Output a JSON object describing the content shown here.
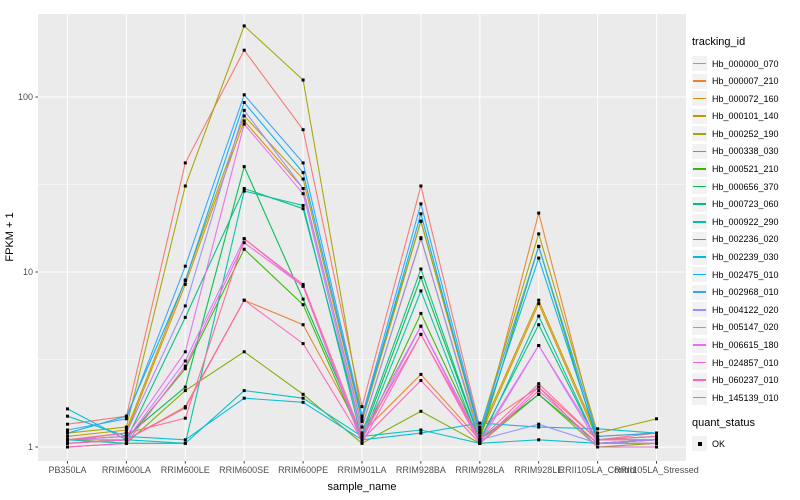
{
  "figure": {
    "background": "#FFFFFF",
    "panel_background": "#EBEBEB",
    "grid_color": "#FFFFFF",
    "axis_text_color": "#4D4D4D",
    "tick_color": "#333333"
  },
  "chart_data": {
    "type": "line",
    "title": "",
    "xlabel": "sample_name",
    "ylabel": "FPKM + 1",
    "y_scale": "log10",
    "y_ticks": [
      1,
      10,
      100
    ],
    "ylim": [
      1,
      300
    ],
    "grid": true,
    "legend_position": "right",
    "legend_title": "tracking_id",
    "point_shape": "square",
    "point_color": "#000000",
    "quant_legend": {
      "title": "quant_status",
      "items": [
        {
          "label": "OK",
          "marker": "black-square"
        }
      ]
    },
    "categories": [
      "PB350LA",
      "RRIM600LA",
      "RRIM600LE",
      "RRIM600SE",
      "RRIM600PE",
      "RRIM901LA",
      "RRIM928BA",
      "RRIM928LA",
      "RRIM928LE",
      "RRII105LA_Control",
      "RRII105LA_Stressed"
    ],
    "series": [
      {
        "name": "Hb_000000_070",
        "color": "#F8766D",
        "values": [
          1.35,
          1.5,
          42,
          185,
          65,
          1.7,
          31,
          1.3,
          2.2,
          1.1,
          1.2
        ]
      },
      {
        "name": "Hb_000007_210",
        "color": "#EA8331",
        "values": [
          1.1,
          1.1,
          1.7,
          6.9,
          5.0,
          1.2,
          2.6,
          1.1,
          21.7,
          1.1,
          1.1
        ]
      },
      {
        "name": "Hb_000072_160",
        "color": "#D89000",
        "values": [
          1.1,
          1.2,
          8.5,
          73,
          30,
          1.3,
          15.5,
          1.15,
          6.6,
          1.1,
          1.1
        ]
      },
      {
        "name": "Hb_000101_140",
        "color": "#C09B00",
        "values": [
          1.15,
          1.25,
          9.0,
          78,
          34,
          1.4,
          19.5,
          1.2,
          6.9,
          1.15,
          1.2
        ]
      },
      {
        "name": "Hb_000252_190",
        "color": "#A3A500",
        "values": [
          1.2,
          1.3,
          31,
          255,
          125,
          1.5,
          19.5,
          1.25,
          16.5,
          1.2,
          1.45
        ]
      },
      {
        "name": "Hb_000338_030",
        "color": "#7CAE00",
        "values": [
          1.0,
          1.05,
          2.1,
          3.5,
          2.0,
          1.05,
          1.6,
          1.05,
          2.0,
          1.0,
          1.05
        ]
      },
      {
        "name": "Hb_000521_210",
        "color": "#39B600",
        "values": [
          1.05,
          1.1,
          2.8,
          13.5,
          6.5,
          1.1,
          5.8,
          1.1,
          14.0,
          1.05,
          1.1
        ]
      },
      {
        "name": "Hb_000656_370",
        "color": "#00BB4E",
        "values": [
          1.1,
          1.15,
          2.2,
          40,
          7.0,
          1.15,
          9.3,
          1.1,
          2.0,
          1.05,
          1.1
        ]
      },
      {
        "name": "Hb_000723_060",
        "color": "#00BF7D",
        "values": [
          1.05,
          1.1,
          5.5,
          30,
          23,
          1.2,
          10.4,
          1.1,
          5.0,
          1.05,
          1.1
        ]
      },
      {
        "name": "Hb_000922_290",
        "color": "#00C1A3",
        "values": [
          1.1,
          1.05,
          1.05,
          29,
          24,
          1.1,
          7.8,
          1.05,
          5.6,
          1.05,
          1.05
        ]
      },
      {
        "name": "Hb_002236_020",
        "color": "#00BFC4",
        "values": [
          1.65,
          1.1,
          1.05,
          2.1,
          1.9,
          1.15,
          1.25,
          1.05,
          1.1,
          1.05,
          1.1
        ]
      },
      {
        "name": "Hb_002239_030",
        "color": "#00BBDA",
        "values": [
          1.5,
          1.15,
          1.1,
          1.9,
          1.8,
          1.1,
          1.2,
          1.37,
          1.3,
          1.27,
          1.2
        ]
      },
      {
        "name": "Hb_002475_010",
        "color": "#00B0F6",
        "values": [
          1.2,
          1.5,
          8.9,
          93,
          37,
          1.45,
          21.5,
          1.2,
          12,
          1.1,
          1.15
        ]
      },
      {
        "name": "Hb_002968_010",
        "color": "#35A2FF",
        "values": [
          1.25,
          1.45,
          10.8,
          103,
          42,
          1.5,
          24.5,
          1.25,
          14,
          1.15,
          1.2
        ]
      },
      {
        "name": "Hb_004122_020",
        "color": "#9590FF",
        "values": [
          1.1,
          1.2,
          6.4,
          84,
          30,
          1.3,
          15.7,
          1.1,
          1.35,
          1.05,
          1.1
        ]
      },
      {
        "name": "Hb_005147_020",
        "color": "#C77CFF",
        "values": [
          1.05,
          1.1,
          3.1,
          15.5,
          8.3,
          1.1,
          4.9,
          1.05,
          3.8,
          1.05,
          1.05
        ]
      },
      {
        "name": "Hb_006615_180",
        "color": "#E76BF3",
        "values": [
          1.1,
          1.15,
          3.5,
          70,
          28,
          1.2,
          4.9,
          1.1,
          3.8,
          1.1,
          1.1
        ]
      },
      {
        "name": "Hb_024857_010",
        "color": "#FA62DB",
        "values": [
          1.0,
          1.05,
          2.9,
          14.7,
          8.3,
          1.05,
          4.4,
          1.05,
          2.2,
          1.0,
          1.0
        ]
      },
      {
        "name": "Hb_060237_010",
        "color": "#FF62BC",
        "values": [
          1.05,
          1.1,
          1.67,
          6.9,
          3.9,
          1.1,
          2.4,
          1.05,
          2.1,
          1.05,
          1.05
        ]
      },
      {
        "name": "Hb_145139_010",
        "color": "#FF6A98",
        "values": [
          1.1,
          1.2,
          1.46,
          15.5,
          8.5,
          1.15,
          4.4,
          1.1,
          2.3,
          1.1,
          1.15
        ]
      }
    ]
  }
}
